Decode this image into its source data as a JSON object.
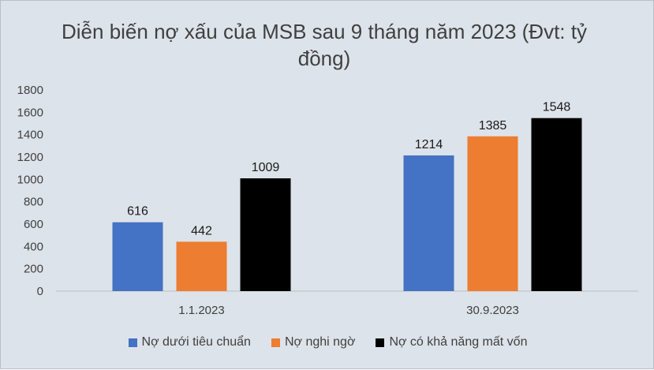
{
  "chart_data": {
    "type": "bar",
    "title": "Diễn biến nợ xấu của MSB sau 9 tháng năm 2023 (Đvt: tỷ đồng)",
    "categories": [
      "1.1.2023",
      "30.9.2023"
    ],
    "series": [
      {
        "name": "Nợ dưới tiêu chuẩn",
        "values": [
          616,
          1214
        ],
        "color": "#4472c4"
      },
      {
        "name": "Nợ nghi ngờ",
        "values": [
          442,
          1385
        ],
        "color": "#ed7d31"
      },
      {
        "name": "Nợ có khả năng mất vốn",
        "values": [
          1009,
          1548
        ],
        "color": "#000000"
      }
    ],
    "yticks": [
      "0",
      "200",
      "400",
      "600",
      "800",
      "1000",
      "1200",
      "1400",
      "1600",
      "1800"
    ],
    "ylim": [
      0,
      1800
    ],
    "grid": false,
    "legend": "bottom"
  }
}
